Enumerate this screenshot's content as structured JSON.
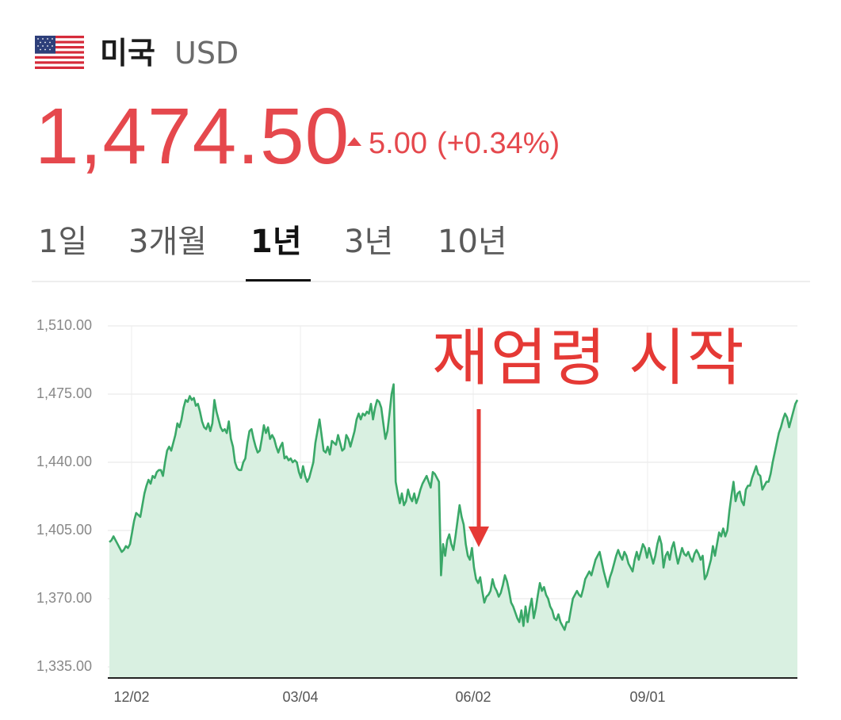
{
  "header": {
    "flag_icon": "us-flag-icon",
    "currency_name": "미국",
    "currency_code": "USD"
  },
  "price": {
    "value": "1,474.50",
    "direction_icon": "triangle-up-icon",
    "change": "5.00",
    "change_pct": "(+0.34%)",
    "color": "#e5484d"
  },
  "tabs": {
    "items": [
      {
        "label": "1일",
        "active": false
      },
      {
        "label": "3개월",
        "active": false
      },
      {
        "label": "1년",
        "active": true
      },
      {
        "label": "3년",
        "active": false
      },
      {
        "label": "10년",
        "active": false
      }
    ]
  },
  "annotation": {
    "text": "재엄령 시작",
    "at_x": "06/02",
    "color": "#e53935"
  },
  "chart_data": {
    "type": "area",
    "x_tick_labels": [
      "12/02",
      "03/04",
      "06/02",
      "09/01"
    ],
    "y_tick_labels": [
      "1,510.00",
      "1,475.00",
      "1,440.00",
      "1,405.00",
      "1,370.00",
      "1,335.00"
    ],
    "y_ticks": [
      1510,
      1475,
      1440,
      1405,
      1370,
      1335
    ],
    "ylim": [
      1335,
      1510
    ],
    "grid": true,
    "line_color": "#3aa868",
    "fill_color": "#d9f0e1",
    "series": [
      {
        "values": [
          1399,
          1400,
          1402,
          1400,
          1398,
          1396,
          1394,
          1395,
          1397,
          1396,
          1398,
          1404,
          1410,
          1414,
          1413,
          1412,
          1418,
          1424,
          1428,
          1431,
          1429,
          1433,
          1432,
          1435,
          1436,
          1436,
          1433,
          1440,
          1446,
          1448,
          1446,
          1450,
          1454,
          1460,
          1458,
          1462,
          1468,
          1472,
          1471,
          1474,
          1472,
          1473,
          1469,
          1470,
          1466,
          1461,
          1458,
          1457,
          1460,
          1456,
          1460,
          1472,
          1466,
          1462,
          1458,
          1456,
          1457,
          1455,
          1461,
          1452,
          1448,
          1440,
          1437,
          1436,
          1436,
          1440,
          1442,
          1450,
          1456,
          1457,
          1452,
          1448,
          1445,
          1446,
          1452,
          1459,
          1455,
          1458,
          1452,
          1454,
          1452,
          1448,
          1445,
          1448,
          1450,
          1442,
          1443,
          1441,
          1442,
          1440,
          1441,
          1440,
          1435,
          1432,
          1438,
          1433,
          1430,
          1432,
          1436,
          1440,
          1450,
          1456,
          1462,
          1454,
          1446,
          1445,
          1448,
          1444,
          1451,
          1450,
          1449,
          1454,
          1450,
          1446,
          1447,
          1454,
          1452,
          1448,
          1452,
          1456,
          1462,
          1465,
          1462,
          1465,
          1464,
          1466,
          1465,
          1470,
          1462,
          1468,
          1472,
          1471,
          1468,
          1460,
          1452,
          1456,
          1465,
          1475,
          1480,
          1430,
          1424,
          1419,
          1424,
          1418,
          1420,
          1426,
          1422,
          1420,
          1424,
          1419,
          1422,
          1426,
          1429,
          1431,
          1433,
          1430,
          1427,
          1435,
          1434,
          1432,
          1430,
          1382,
          1398,
          1392,
          1400,
          1403,
          1398,
          1395,
          1402,
          1410,
          1418,
          1412,
          1408,
          1398,
          1392,
          1390,
          1396,
          1386,
          1380,
          1378,
          1381,
          1374,
          1368,
          1371,
          1372,
          1374,
          1380,
          1376,
          1374,
          1371,
          1373,
          1377,
          1382,
          1379,
          1374,
          1368,
          1366,
          1363,
          1360,
          1358,
          1364,
          1356,
          1366,
          1358,
          1365,
          1370,
          1360,
          1365,
          1372,
          1378,
          1374,
          1376,
          1372,
          1370,
          1366,
          1364,
          1360,
          1359,
          1362,
          1358,
          1356,
          1354,
          1358,
          1358,
          1364,
          1370,
          1372,
          1374,
          1372,
          1371,
          1375,
          1380,
          1382,
          1384,
          1382,
          1386,
          1390,
          1392,
          1394,
          1389,
          1384,
          1380,
          1376,
          1381,
          1384,
          1388,
          1392,
          1395,
          1392,
          1390,
          1394,
          1392,
          1388,
          1386,
          1384,
          1390,
          1394,
          1390,
          1394,
          1398,
          1396,
          1391,
          1396,
          1392,
          1388,
          1392,
          1398,
          1402,
          1398,
          1386,
          1392,
          1394,
          1390,
          1396,
          1399,
          1393,
          1388,
          1392,
          1396,
          1393,
          1392,
          1394,
          1391,
          1389,
          1393,
          1395,
          1393,
          1390,
          1392,
          1380,
          1382,
          1386,
          1390,
          1397,
          1392,
          1398,
          1404,
          1402,
          1406,
          1402,
          1405,
          1415,
          1423,
          1430,
          1420,
          1424,
          1425,
          1420,
          1418,
          1426,
          1428,
          1428,
          1432,
          1435,
          1438,
          1434,
          1433,
          1426,
          1428,
          1430,
          1430,
          1434,
          1440,
          1445,
          1450,
          1455,
          1458,
          1462,
          1465,
          1463,
          1458,
          1462,
          1466,
          1470,
          1472
        ]
      }
    ]
  }
}
